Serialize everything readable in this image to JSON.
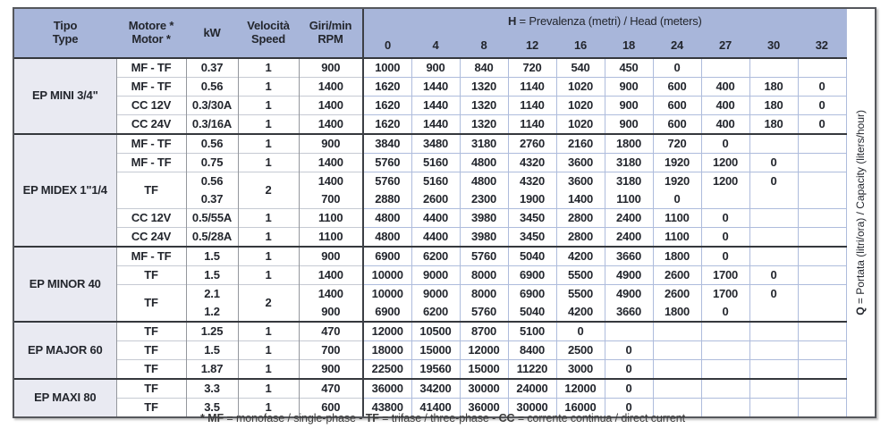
{
  "colors": {
    "header_blue": "#a8b6da",
    "section_label_bg": "#e9eaf2",
    "grid_light_blue": "#aebcdc",
    "grid_gray": "#94979d",
    "dark_line": "#35383d",
    "outer_border": "#55575c",
    "text": "#23262d"
  },
  "header": {
    "tipo": "Tipo\nType",
    "motore": "Motore *\nMotor *",
    "kw": "kW",
    "velocita": "Velocità\nSpeed",
    "giri": "Giri/min\nRPM",
    "h_bold": "H",
    "h_rest": " = Prevalenza (metri) / Head (meters)",
    "h_values": [
      "0",
      "4",
      "8",
      "12",
      "16",
      "18",
      "24",
      "27",
      "30",
      "32"
    ]
  },
  "q_label": {
    "bold": "Q",
    "rest": " = Portata (litri/ora) / Capacity (liters/hour)"
  },
  "sections": [
    {
      "name": "EP MINI 3/4\"",
      "rows": [
        {
          "motor": "MF - TF",
          "kw": "0.37",
          "speed": "1",
          "rpm": "900",
          "q": [
            "1000",
            "900",
            "840",
            "720",
            "540",
            "450",
            "0",
            "",
            "",
            ""
          ]
        },
        {
          "motor": "MF - TF",
          "kw": "0.56",
          "speed": "1",
          "rpm": "1400",
          "q": [
            "1620",
            "1440",
            "1320",
            "1140",
            "1020",
            "900",
            "600",
            "400",
            "180",
            "0"
          ]
        },
        {
          "motor": "CC 12V",
          "kw": "0.3/30A",
          "speed": "1",
          "rpm": "1400",
          "q": [
            "1620",
            "1440",
            "1320",
            "1140",
            "1020",
            "900",
            "600",
            "400",
            "180",
            "0"
          ]
        },
        {
          "motor": "CC 24V",
          "kw": "0.3/16A",
          "speed": "1",
          "rpm": "1400",
          "q": [
            "1620",
            "1440",
            "1320",
            "1140",
            "1020",
            "900",
            "600",
            "400",
            "180",
            "0"
          ]
        }
      ]
    },
    {
      "name": "EP MIDEX 1\"1/4",
      "rows": [
        {
          "motor": "MF - TF",
          "kw": "0.56",
          "speed": "1",
          "rpm": "900",
          "q": [
            "3840",
            "3480",
            "3180",
            "2760",
            "2160",
            "1800",
            "720",
            "0",
            "",
            ""
          ]
        },
        {
          "motor": "MF - TF",
          "kw": "0.75",
          "speed": "1",
          "rpm": "1400",
          "q": [
            "5760",
            "5160",
            "4800",
            "4320",
            "3600",
            "3180",
            "1920",
            "1200",
            "0",
            ""
          ]
        },
        {
          "dual": true,
          "motor": "TF",
          "speed": "2",
          "subs": [
            {
              "kw": "0.56",
              "rpm": "1400",
              "q": [
                "5760",
                "5160",
                "4800",
                "4320",
                "3600",
                "3180",
                "1920",
                "1200",
                "0",
                ""
              ]
            },
            {
              "kw": "0.37",
              "rpm": "700",
              "q": [
                "2880",
                "2600",
                "2300",
                "1900",
                "1400",
                "1100",
                "0",
                "",
                "",
                ""
              ]
            }
          ]
        },
        {
          "motor": "CC 12V",
          "kw": "0.5/55A",
          "speed": "1",
          "rpm": "1100",
          "q": [
            "4800",
            "4400",
            "3980",
            "3450",
            "2800",
            "2400",
            "1100",
            "0",
            "",
            ""
          ]
        },
        {
          "motor": "CC 24V",
          "kw": "0.5/28A",
          "speed": "1",
          "rpm": "1100",
          "q": [
            "4800",
            "4400",
            "3980",
            "3450",
            "2800",
            "2400",
            "1100",
            "0",
            "",
            ""
          ]
        }
      ]
    },
    {
      "name": "EP MINOR 40",
      "rows": [
        {
          "motor": "MF - TF",
          "kw": "1.5",
          "speed": "1",
          "rpm": "900",
          "q": [
            "6900",
            "6200",
            "5760",
            "5040",
            "4200",
            "3660",
            "1800",
            "0",
            "",
            ""
          ]
        },
        {
          "motor": "TF",
          "kw": "1.5",
          "speed": "1",
          "rpm": "1400",
          "q": [
            "10000",
            "9000",
            "8000",
            "6900",
            "5500",
            "4900",
            "2600",
            "1700",
            "0",
            ""
          ]
        },
        {
          "dual": true,
          "motor": "TF",
          "speed": "2",
          "subs": [
            {
              "kw": "2.1",
              "rpm": "1400",
              "q": [
                "10000",
                "9000",
                "8000",
                "6900",
                "5500",
                "4900",
                "2600",
                "1700",
                "0",
                ""
              ]
            },
            {
              "kw": "1.2",
              "rpm": "900",
              "q": [
                "6900",
                "6200",
                "5760",
                "5040",
                "4200",
                "3660",
                "1800",
                "0",
                "",
                ""
              ]
            }
          ]
        }
      ]
    },
    {
      "name": "EP MAJOR 60",
      "rows": [
        {
          "motor": "TF",
          "kw": "1.25",
          "speed": "1",
          "rpm": "470",
          "q": [
            "12000",
            "10500",
            "8700",
            "5100",
            "0",
            "",
            "",
            "",
            "",
            ""
          ]
        },
        {
          "motor": "TF",
          "kw": "1.5",
          "speed": "1",
          "rpm": "700",
          "q": [
            "18000",
            "15000",
            "12000",
            "8400",
            "2500",
            "0",
            "",
            "",
            "",
            ""
          ]
        },
        {
          "motor": "TF",
          "kw": "1.87",
          "speed": "1",
          "rpm": "900",
          "q": [
            "22500",
            "19560",
            "15000",
            "11220",
            "3000",
            "0",
            "",
            "",
            "",
            ""
          ]
        }
      ]
    },
    {
      "name": "EP MAXI 80",
      "rows": [
        {
          "motor": "TF",
          "kw": "3.3",
          "speed": "1",
          "rpm": "470",
          "q": [
            "36000",
            "34200",
            "30000",
            "24000",
            "12000",
            "0",
            "",
            "",
            "",
            ""
          ]
        },
        {
          "motor": "TF",
          "kw": "3.5",
          "speed": "1",
          "rpm": "600",
          "q": [
            "43800",
            "41400",
            "36000",
            "30000",
            "16000",
            "0",
            "",
            "",
            "",
            ""
          ]
        }
      ]
    }
  ],
  "footnote": {
    "segments": [
      "* MF",
      " = monofase / single-phase - ",
      "TF",
      " = trifase / three-phase - ",
      "CC",
      " = corrente continua / direct current"
    ]
  }
}
